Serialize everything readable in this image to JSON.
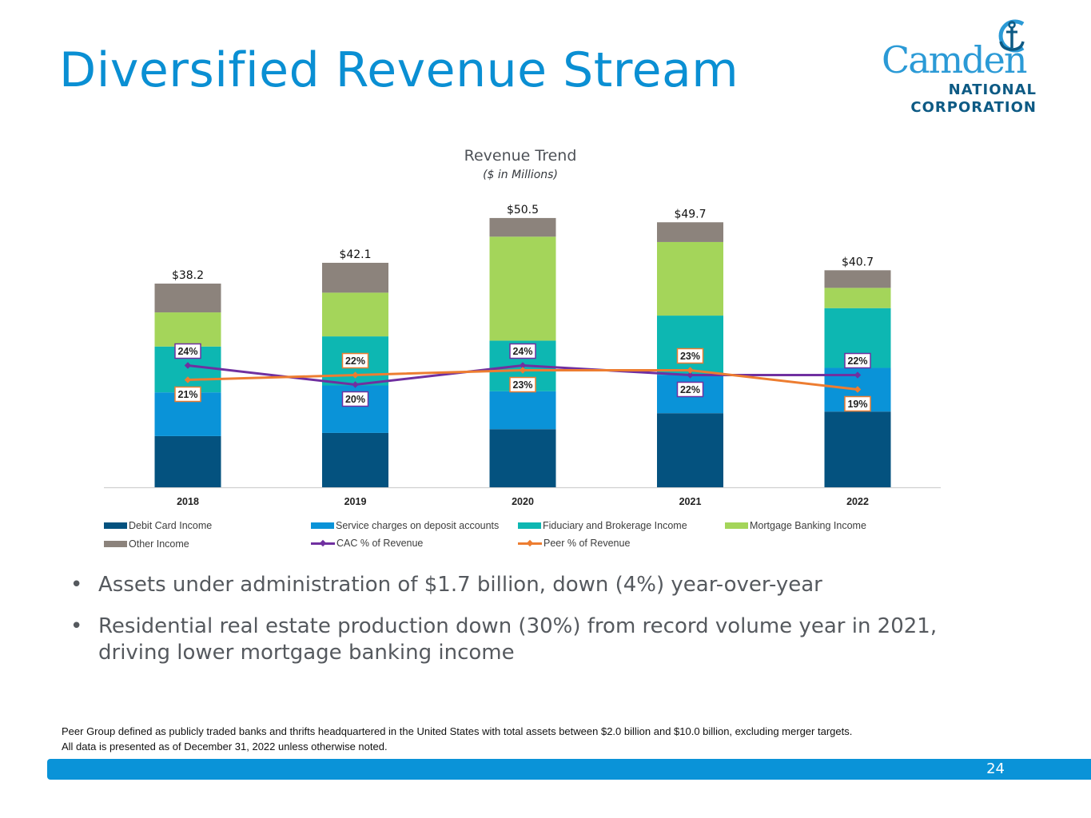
{
  "slide": {
    "title": "Diversified Revenue Stream",
    "page_number": "24"
  },
  "logo": {
    "name": "Camden",
    "line2": "NATIONAL",
    "line3": "CORPORATION",
    "icon": "anchor-icon"
  },
  "colors": {
    "title": "#0a8fd3",
    "debit": "#04527f",
    "service": "#0a93d8",
    "fiduciary": "#0db7b2",
    "mortgage": "#a4d55a",
    "other": "#8c837c",
    "cac": "#7030a0",
    "peer": "#ed7d31",
    "footer_bar": "#0a93d8"
  },
  "chart_data": {
    "type": "bar",
    "stacked": true,
    "title": "Revenue Trend",
    "subtitle": "($ in Millions)",
    "categories": [
      "2018",
      "2019",
      "2020",
      "2021",
      "2022"
    ],
    "totals": [
      38.2,
      42.1,
      50.5,
      49.7,
      40.7
    ],
    "total_labels": [
      "$38.2",
      "$42.1",
      "$50.5",
      "$49.7",
      "$40.7"
    ],
    "series": [
      {
        "name": "Debit Card Income",
        "key": "debit",
        "values": [
          9.6,
          10.2,
          10.9,
          13.9,
          14.2
        ]
      },
      {
        "name": "Service charges on deposit accounts",
        "key": "service",
        "values": [
          8.2,
          8.9,
          7.1,
          7.2,
          8.2
        ]
      },
      {
        "name": "Fiduciary and Brokerage Income",
        "key": "fiduciary",
        "values": [
          8.6,
          9.2,
          9.5,
          11.1,
          11.2
        ]
      },
      {
        "name": "Mortgage Banking Income",
        "key": "mortgage",
        "values": [
          6.4,
          8.2,
          19.5,
          13.8,
          3.8
        ]
      },
      {
        "name": "Other Income",
        "key": "other",
        "values": [
          5.4,
          5.6,
          3.5,
          3.7,
          3.3
        ]
      }
    ],
    "lines": [
      {
        "name": "CAC % of Revenue",
        "key": "cac",
        "values": [
          24,
          20,
          24,
          22,
          22
        ],
        "labels": [
          "24%",
          "20%",
          "24%",
          "22%",
          "22%"
        ],
        "label_pos": [
          "above",
          "below",
          "above",
          "below",
          "above"
        ]
      },
      {
        "name": "Peer % of Revenue",
        "key": "peer",
        "values": [
          21,
          22,
          23,
          23,
          19
        ],
        "labels": [
          "21%",
          "22%",
          "23%",
          "23%",
          "19%"
        ],
        "label_pos": [
          "below",
          "above",
          "below",
          "above",
          "below"
        ]
      }
    ],
    "ylim": [
      0,
      55
    ],
    "xlabel": "",
    "ylabel": "",
    "grid": false,
    "legend_position": "bottom"
  },
  "bullets": [
    "Assets under administration of $1.7 billion, down (4%) year-over-year",
    "Residential real estate production down (30%) from record volume year in 2021, driving lower mortgage banking income"
  ],
  "bullet_char": "•",
  "footnotes": [
    "Peer Group defined as publicly traded banks and thrifts headquartered in the United States with total assets between $2.0 billion and $10.0 billion, excluding merger targets.",
    "All data is presented as of December 31, 2022 unless otherwise noted."
  ]
}
